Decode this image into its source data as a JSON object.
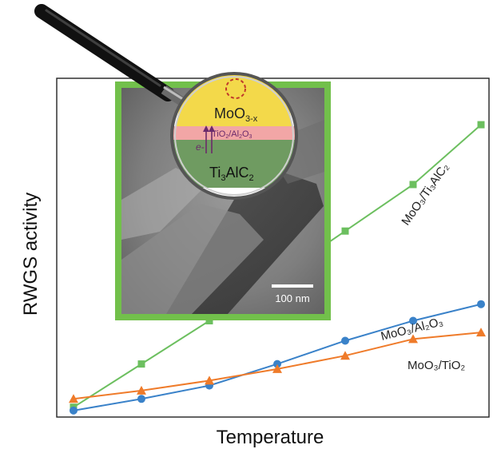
{
  "chart_data": {
    "type": "line",
    "title": "",
    "xlabel": "Temperature",
    "ylabel": "RWGS activity",
    "x": [
      1,
      2,
      3,
      4,
      5,
      6,
      7
    ],
    "xlim": [
      0.5,
      7.5
    ],
    "ylim": [
      0,
      100
    ],
    "grid": false,
    "legend": "none",
    "series": [
      {
        "name": "MoO₃/Ti₃AlC₂",
        "color": "#6cbf5f",
        "marker": "square",
        "values": [
          2,
          15,
          28,
          41,
          55,
          69,
          87
        ]
      },
      {
        "name": "MoO₃/Al₂O₃",
        "color": "#3a82c9",
        "marker": "circle",
        "values": [
          1,
          4.5,
          8.5,
          15,
          22,
          28,
          33
        ]
      },
      {
        "name": "MoO₃/TiO₂",
        "color": "#ef7b2a",
        "marker": "triangle",
        "values": [
          4.5,
          7,
          10,
          13.5,
          17.5,
          22.5,
          24.5
        ]
      }
    ]
  },
  "inset": {
    "scale_bar_label": "100 nm",
    "magnifier_labels": {
      "top_layer": "MoO3-x",
      "middle_layer": "TiO2/Al2O3",
      "electron": "e-",
      "substrate": "Ti3AlC2"
    }
  },
  "colors": {
    "frame_green": "#72c04b",
    "moo3_yellow": "#f3d94a",
    "interlayer_pink": "#f2a6a6",
    "substrate_green": "#6f9b61",
    "vacancy_red": "#c0392b"
  }
}
